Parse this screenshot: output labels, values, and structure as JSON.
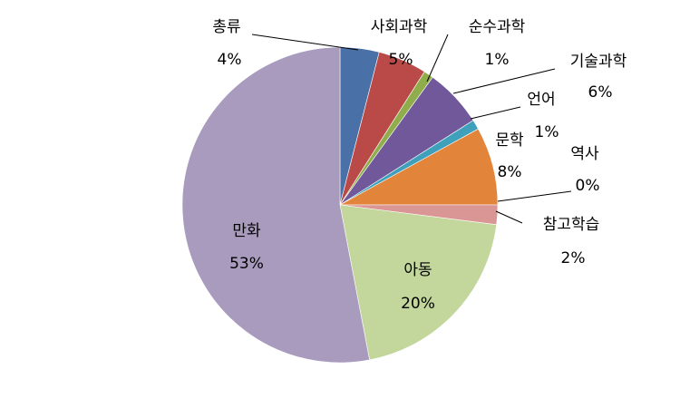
{
  "chart_data": {
    "type": "pie",
    "categories": [
      "총류",
      "사회과학",
      "순수과학",
      "기술과학",
      "언어",
      "문학",
      "역사",
      "참고학습",
      "아동",
      "만화"
    ],
    "values": [
      4,
      5,
      1,
      6,
      1,
      8,
      0,
      2,
      20,
      53
    ],
    "value_labels": [
      "4%",
      "5%",
      "1%",
      "6%",
      "1%",
      "8%",
      "0%",
      "2%",
      "20%",
      "53%"
    ],
    "colors": [
      "#4a70a8",
      "#b94a47",
      "#8fae4b",
      "#71589a",
      "#3fa0bb",
      "#e2853a",
      "#93a9d0",
      "#da9694",
      "#c3d69b",
      "#a99bbd"
    ]
  }
}
